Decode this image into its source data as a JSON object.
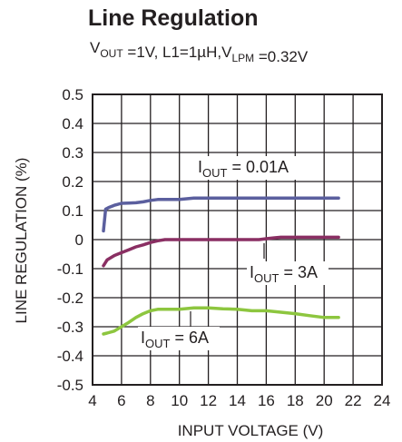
{
  "chart_data": {
    "type": "line",
    "title": "Line Regulation",
    "subtitle": {
      "parts": [
        {
          "text": "V",
          "sub": "OUT"
        },
        {
          "text": " =1V, L1=1µH,V",
          "sub": "LPM"
        },
        {
          "text": " =0.32V",
          "sub": ""
        }
      ]
    },
    "xlabel": "INPUT VOLTAGE (V)",
    "ylabel": "LINE REGULATION (%)",
    "xlim": [
      4,
      24
    ],
    "ylim": [
      -0.5,
      0.5
    ],
    "x_ticks": [
      4,
      6,
      8,
      10,
      12,
      14,
      16,
      18,
      20,
      22,
      24
    ],
    "x_tick_labels": [
      "4",
      "6",
      "8",
      "10",
      "12",
      "14",
      "16",
      "18",
      "20",
      "22",
      "24"
    ],
    "y_ticks": [
      0.5,
      0.4,
      0.3,
      0.2,
      0.1,
      0,
      -0.1,
      -0.2,
      -0.3,
      -0.4,
      -0.5
    ],
    "y_tick_labels": [
      "0.5",
      "0.4",
      "0.3",
      "0.2",
      "0.1",
      "0",
      "-0.1",
      "-0.2",
      "-0.3",
      "-0.4",
      "-0.5"
    ],
    "grid": true,
    "series": [
      {
        "name": "I_OUT = 0.01A",
        "label_main": "I",
        "label_sub": "OUT",
        "label_rest": " = 0.01A",
        "color": "#5b5f9e",
        "x": [
          4.75,
          4.9,
          5.1,
          5.5,
          6.0,
          6.5,
          7.0,
          7.5,
          8.0,
          8.5,
          9.0,
          10.0,
          11.0,
          12.0,
          14.0,
          16.0,
          18.0,
          20.0,
          21.0
        ],
        "y": [
          0.03,
          0.105,
          0.11,
          0.118,
          0.125,
          0.126,
          0.127,
          0.13,
          0.135,
          0.138,
          0.138,
          0.138,
          0.143,
          0.143,
          0.143,
          0.143,
          0.143,
          0.143,
          0.143
        ]
      },
      {
        "name": "I_OUT = 3A",
        "label_main": "I",
        "label_sub": "OUT",
        "label_rest": " = 3A",
        "color": "#8a2f63",
        "x": [
          4.75,
          5.0,
          5.5,
          6.0,
          6.5,
          7.0,
          7.5,
          8.0,
          8.5,
          9.0,
          10.0,
          12.0,
          14.0,
          15.5,
          16.0,
          16.5,
          17.0,
          18.0,
          20.0,
          21.0
        ],
        "y": [
          -0.09,
          -0.07,
          -0.055,
          -0.045,
          -0.035,
          -0.025,
          -0.018,
          -0.01,
          -0.004,
          0.0,
          0.0,
          0.0,
          0.0,
          0.0,
          0.003,
          0.006,
          0.008,
          0.008,
          0.008,
          0.008
        ]
      },
      {
        "name": "I_OUT = 6A",
        "label_main": "I",
        "label_sub": "OUT",
        "label_rest": " = 6A",
        "color": "#8dc63f",
        "x": [
          4.75,
          5.0,
          5.5,
          6.0,
          6.5,
          7.0,
          7.5,
          8.0,
          8.5,
          9.0,
          10.0,
          11.0,
          12.0,
          13.0,
          14.0,
          15.0,
          16.0,
          17.0,
          18.0,
          19.0,
          20.0,
          21.0
        ],
        "y": [
          -0.325,
          -0.322,
          -0.315,
          -0.3,
          -0.285,
          -0.268,
          -0.255,
          -0.245,
          -0.24,
          -0.24,
          -0.24,
          -0.235,
          -0.235,
          -0.238,
          -0.24,
          -0.245,
          -0.245,
          -0.25,
          -0.255,
          -0.262,
          -0.268,
          -0.268
        ]
      }
    ]
  }
}
